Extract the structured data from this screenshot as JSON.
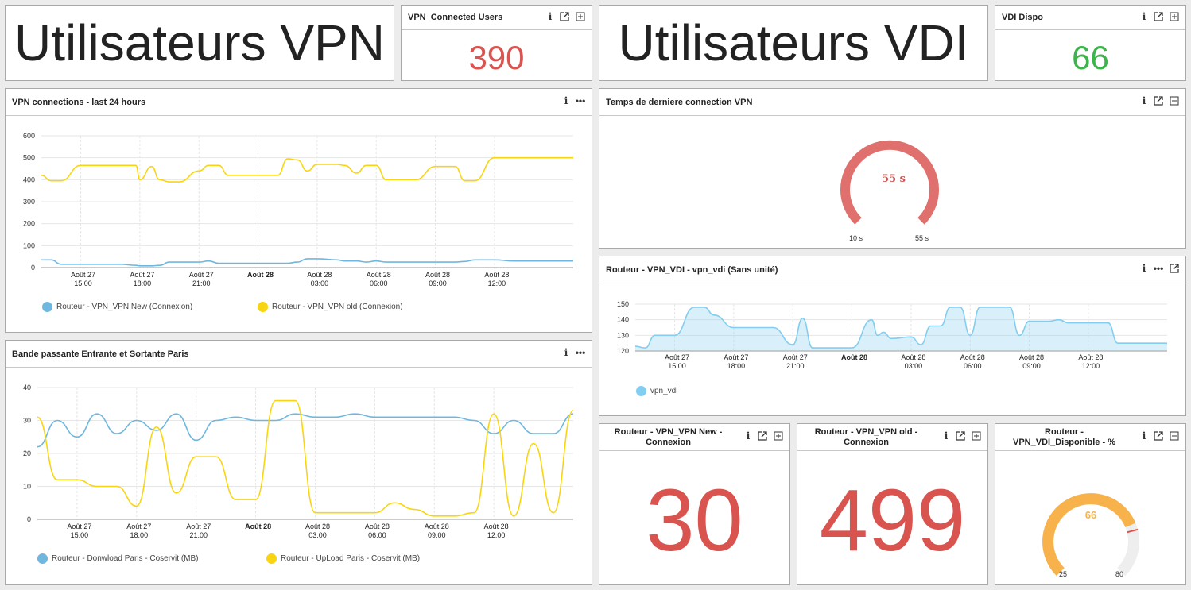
{
  "colors": {
    "blue": "#6fb7df",
    "yellow": "#f9d511",
    "red": "#d9534f",
    "green": "#3cb44b",
    "lightblue": "#82cdf0",
    "orange": "#f7b24c",
    "gaugered": "#e0706d"
  },
  "title_vpn": "Utilisateurs VPN",
  "title_vdi": "Utilisateurs VDI",
  "vpn_users": {
    "title": "VPN_Connected Users",
    "value": "390"
  },
  "vdi_dispo": {
    "title": "VDI Dispo",
    "value": "66"
  },
  "vpn_conn": {
    "title": "VPN connections - last 24 hours",
    "legend": [
      "Routeur - VPN_VPN New (Connexion)",
      "Routeur - VPN_VPN old (Connexion)"
    ]
  },
  "bandwidth": {
    "title": "Bande passante Entrante et Sortante Paris",
    "legend": [
      "Routeur - Donwload Paris - Coservit (MB)",
      "Routeur - UpLoad Paris - Coservit (MB)"
    ]
  },
  "last_conn": {
    "title": "Temps de derniere connection VPN",
    "value": "55 s",
    "min": "10 s",
    "max": "55 s"
  },
  "vdi_chart": {
    "title": "Routeur - VPN_VDI - vpn_vdi (Sans unité)",
    "legend": [
      "vpn_vdi"
    ]
  },
  "vpn_new": {
    "title": "Routeur - VPN_VPN New - Connexion",
    "value": "30"
  },
  "vpn_old": {
    "title": "Routeur - VPN_VPN old - Connexion",
    "value": "499"
  },
  "vdi_pct": {
    "title": "Routeur - VPN_VDI_Disponible - %",
    "value": "66",
    "min": "25",
    "max": "80",
    "fraction": 0.75
  },
  "chart_data": [
    {
      "type": "line",
      "title": "VPN connections - last 24 hours",
      "x_ticks": [
        [
          "Août 27",
          "15:00"
        ],
        [
          "Août 27",
          "18:00"
        ],
        [
          "Août 27",
          "21:00"
        ],
        [
          "Août 28",
          ""
        ],
        [
          "Août 28",
          "03:00"
        ],
        [
          "Août 28",
          "06:00"
        ],
        [
          "Août 28",
          "09:00"
        ],
        [
          "Août 28",
          "12:00"
        ]
      ],
      "x": [
        13,
        13.5,
        14,
        15,
        16,
        17,
        17.8,
        18,
        18.6,
        19,
        19.5,
        20,
        21,
        21.5,
        22,
        22.5,
        23,
        24,
        25,
        25.5,
        26,
        26.5,
        27,
        28,
        28.4,
        29,
        29.5,
        30,
        30.5,
        31,
        32,
        33,
        34,
        34.5,
        35,
        36,
        37,
        37.5,
        38,
        39,
        40
      ],
      "ylim": [
        0,
        600
      ],
      "yticks": [
        0,
        100,
        200,
        300,
        400,
        500,
        600
      ],
      "series": [
        {
          "name": "Routeur - VPN_VPN New (Connexion)",
          "values": [
            35,
            35,
            15,
            15,
            15,
            15,
            10,
            8,
            8,
            10,
            25,
            25,
            25,
            30,
            20,
            20,
            20,
            20,
            20,
            20,
            25,
            40,
            40,
            35,
            30,
            30,
            25,
            30,
            25,
            25,
            25,
            25,
            25,
            28,
            35,
            35,
            30,
            30,
            30,
            30,
            30
          ]
        },
        {
          "name": "Routeur - VPN_VPN old (Connexion)",
          "values": [
            420,
            395,
            395,
            465,
            465,
            465,
            465,
            400,
            460,
            400,
            390,
            390,
            440,
            465,
            465,
            420,
            420,
            420,
            420,
            495,
            490,
            440,
            470,
            470,
            465,
            430,
            465,
            465,
            400,
            400,
            400,
            460,
            460,
            395,
            395,
            500,
            500,
            500,
            500,
            500,
            500
          ]
        }
      ]
    },
    {
      "type": "line",
      "title": "Bande passante Entrante et Sortante Paris",
      "x_ticks": [
        [
          "Août 27",
          "15:00"
        ],
        [
          "Août 27",
          "18:00"
        ],
        [
          "Août 27",
          "21:00"
        ],
        [
          "Août 28",
          ""
        ],
        [
          "Août 28",
          "03:00"
        ],
        [
          "Août 28",
          "06:00"
        ],
        [
          "Août 28",
          "09:00"
        ],
        [
          "Août 28",
          "12:00"
        ]
      ],
      "x": [
        13,
        14,
        15,
        16,
        17,
        18,
        19,
        20,
        21,
        22,
        23,
        24,
        25,
        26,
        27,
        28,
        29,
        30,
        31,
        32,
        33,
        34,
        35,
        36,
        37,
        38,
        39,
        40
      ],
      "ylim": [
        0,
        40
      ],
      "yticks": [
        0,
        10,
        20,
        30,
        40
      ],
      "series": [
        {
          "name": "Routeur - Donwload Paris - Coservit (MB)",
          "values": [
            22,
            30,
            25,
            32,
            26,
            30,
            27,
            32,
            24,
            30,
            31,
            30,
            30,
            32,
            31,
            31,
            32,
            31,
            31,
            31,
            31,
            31,
            30,
            26,
            30,
            26,
            26,
            32
          ]
        },
        {
          "name": "Routeur - UpLoad Paris - Coservit (MB)",
          "values": [
            31,
            12,
            12,
            10,
            10,
            4,
            28,
            8,
            19,
            19,
            6,
            6,
            36,
            36,
            2,
            2,
            2,
            2,
            5,
            3,
            1,
            1,
            2,
            32,
            1,
            23,
            2,
            33
          ]
        }
      ]
    },
    {
      "type": "area",
      "title": "Routeur - VPN_VDI - vpn_vdi (Sans unité)",
      "x_ticks": [
        [
          "Août 27",
          "15:00"
        ],
        [
          "Août 27",
          "18:00"
        ],
        [
          "Août 27",
          "21:00"
        ],
        [
          "Août 28",
          ""
        ],
        [
          "Août 28",
          "03:00"
        ],
        [
          "Août 28",
          "06:00"
        ],
        [
          "Août 28",
          "09:00"
        ],
        [
          "Août 28",
          "12:00"
        ]
      ],
      "x": [
        13,
        13.5,
        14,
        15,
        16,
        16.5,
        17,
        18,
        19,
        20,
        21,
        21.5,
        22,
        22.5,
        23,
        24,
        25,
        25.3,
        25.6,
        26,
        27,
        27.5,
        28,
        28.5,
        29,
        29.5,
        30,
        30.5,
        31,
        32,
        32.5,
        33,
        34,
        34.5,
        35,
        36,
        37,
        37.5,
        38,
        39,
        40
      ],
      "ylim": [
        120,
        150
      ],
      "yticks": [
        120,
        130,
        140,
        150
      ],
      "series": [
        {
          "name": "vpn_vdi",
          "values": [
            123,
            122,
            130,
            130,
            148,
            148,
            143,
            135,
            135,
            135,
            124,
            141,
            122,
            122,
            122,
            122,
            140,
            130,
            132,
            128,
            129,
            124,
            136,
            136,
            148,
            148,
            130,
            148,
            148,
            148,
            130,
            139,
            139,
            140,
            138,
            138,
            138,
            125,
            125,
            125,
            125
          ]
        }
      ]
    }
  ]
}
